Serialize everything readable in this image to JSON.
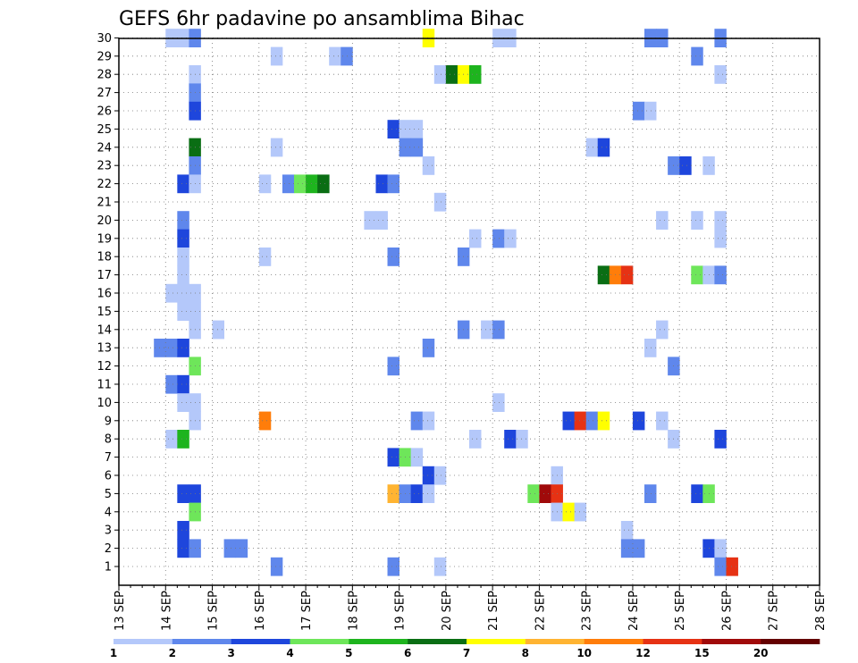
{
  "chart_data": {
    "type": "heatmap",
    "title": "GEFS 6hr padavine po ansamblima Bihac",
    "x_ticks": [
      "13 SEP",
      "14 SEP",
      "15 SEP",
      "16 SEP",
      "17 SEP",
      "18 SEP",
      "19 SEP",
      "20 SEP",
      "21 SEP",
      "22 SEP",
      "23 SEP",
      "24 SEP",
      "25 SEP",
      "26 SEP",
      "27 SEP",
      "28 SEP"
    ],
    "y_members": [
      1,
      2,
      3,
      4,
      5,
      6,
      7,
      8,
      9,
      10,
      11,
      12,
      13,
      14,
      15,
      16,
      17,
      18,
      19,
      20,
      21,
      22,
      23,
      24,
      25,
      26,
      27,
      28,
      29,
      30
    ],
    "grid": true,
    "x_step_hours": 6,
    "colorbar": {
      "labels": [
        "1",
        "2",
        "3",
        "4",
        "5",
        "6",
        "7",
        "8",
        "10",
        "12",
        "15",
        "20"
      ],
      "colors": [
        "#b4c8fa",
        "#5f87ec",
        "#1e46dc",
        "#6ee65a",
        "#1eb41e",
        "#0a6e14",
        "#ffff00",
        "#ffb432",
        "#ff7d0a",
        "#e63214",
        "#a00a0a",
        "#640000"
      ]
    },
    "cells": [
      [
        4,
        30,
        1
      ],
      [
        5,
        30,
        1
      ],
      [
        6,
        30,
        2
      ],
      [
        26,
        30,
        7
      ],
      [
        32,
        30,
        1
      ],
      [
        33,
        30,
        1
      ],
      [
        45,
        30,
        2
      ],
      [
        46,
        30,
        2
      ],
      [
        51,
        30,
        2
      ],
      [
        13,
        29,
        1
      ],
      [
        18,
        29,
        1
      ],
      [
        19,
        29,
        2
      ],
      [
        49,
        29,
        2
      ],
      [
        6,
        28,
        1
      ],
      [
        27,
        28,
        1
      ],
      [
        28,
        28,
        6
      ],
      [
        29,
        28,
        7
      ],
      [
        30,
        28,
        5
      ],
      [
        51,
        28,
        1
      ],
      [
        6,
        27,
        2
      ],
      [
        6,
        26,
        3
      ],
      [
        44,
        26,
        2
      ],
      [
        45,
        26,
        1
      ],
      [
        23,
        25,
        3
      ],
      [
        24,
        25,
        1
      ],
      [
        25,
        25,
        1
      ],
      [
        6,
        24,
        6
      ],
      [
        13,
        24,
        1
      ],
      [
        24,
        24,
        2
      ],
      [
        25,
        24,
        2
      ],
      [
        40,
        24,
        1
      ],
      [
        41,
        24,
        3
      ],
      [
        6,
        23,
        2
      ],
      [
        26,
        23,
        1
      ],
      [
        47,
        23,
        2
      ],
      [
        48,
        23,
        3
      ],
      [
        50,
        23,
        1
      ],
      [
        5,
        22,
        3
      ],
      [
        6,
        22,
        1
      ],
      [
        12,
        22,
        1
      ],
      [
        14,
        22,
        2
      ],
      [
        15,
        22,
        4
      ],
      [
        16,
        22,
        5
      ],
      [
        17,
        22,
        6
      ],
      [
        22,
        22,
        3
      ],
      [
        23,
        22,
        2
      ],
      [
        27,
        21,
        1
      ],
      [
        5,
        20,
        2
      ],
      [
        21,
        20,
        1
      ],
      [
        22,
        20,
        1
      ],
      [
        46,
        20,
        1
      ],
      [
        49,
        20,
        1
      ],
      [
        51,
        20,
        1
      ],
      [
        5,
        19,
        3
      ],
      [
        30,
        19,
        1
      ],
      [
        32,
        19,
        2
      ],
      [
        33,
        19,
        1
      ],
      [
        51,
        19,
        1
      ],
      [
        5,
        18,
        1
      ],
      [
        12,
        18,
        1
      ],
      [
        23,
        18,
        2
      ],
      [
        29,
        18,
        2
      ],
      [
        5,
        17,
        1
      ],
      [
        41,
        17,
        6
      ],
      [
        42,
        17,
        9
      ],
      [
        43,
        17,
        10
      ],
      [
        49,
        17,
        4
      ],
      [
        50,
        17,
        1
      ],
      [
        51,
        17,
        2
      ],
      [
        4,
        16,
        1
      ],
      [
        5,
        16,
        1
      ],
      [
        6,
        16,
        1
      ],
      [
        5,
        15,
        1
      ],
      [
        6,
        15,
        1
      ],
      [
        6,
        14,
        1
      ],
      [
        8,
        14,
        1
      ],
      [
        29,
        14,
        2
      ],
      [
        31,
        14,
        1
      ],
      [
        32,
        14,
        2
      ],
      [
        46,
        14,
        1
      ],
      [
        3,
        13,
        2
      ],
      [
        4,
        13,
        2
      ],
      [
        5,
        13,
        3
      ],
      [
        26,
        13,
        2
      ],
      [
        45,
        13,
        1
      ],
      [
        6,
        12,
        4
      ],
      [
        23,
        12,
        2
      ],
      [
        47,
        12,
        2
      ],
      [
        4,
        11,
        2
      ],
      [
        5,
        11,
        3
      ],
      [
        5,
        10,
        1
      ],
      [
        6,
        10,
        1
      ],
      [
        32,
        10,
        1
      ],
      [
        6,
        9,
        1
      ],
      [
        12,
        9,
        9
      ],
      [
        25,
        9,
        2
      ],
      [
        26,
        9,
        1
      ],
      [
        38,
        9,
        3
      ],
      [
        39,
        9,
        10
      ],
      [
        40,
        9,
        2
      ],
      [
        41,
        9,
        7
      ],
      [
        44,
        9,
        3
      ],
      [
        46,
        9,
        1
      ],
      [
        4,
        8,
        1
      ],
      [
        5,
        8,
        5
      ],
      [
        30,
        8,
        1
      ],
      [
        33,
        8,
        3
      ],
      [
        34,
        8,
        1
      ],
      [
        47,
        8,
        1
      ],
      [
        51,
        8,
        3
      ],
      [
        23,
        7,
        3
      ],
      [
        24,
        7,
        4
      ],
      [
        25,
        7,
        1
      ],
      [
        26,
        6,
        3
      ],
      [
        27,
        6,
        1
      ],
      [
        37,
        6,
        1
      ],
      [
        5,
        5,
        3
      ],
      [
        6,
        5,
        3
      ],
      [
        23,
        5,
        8
      ],
      [
        24,
        5,
        2
      ],
      [
        25,
        5,
        3
      ],
      [
        26,
        5,
        1
      ],
      [
        35,
        5,
        4
      ],
      [
        36,
        5,
        11
      ],
      [
        37,
        5,
        10
      ],
      [
        45,
        5,
        2
      ],
      [
        49,
        5,
        3
      ],
      [
        50,
        5,
        4
      ],
      [
        6,
        4,
        4
      ],
      [
        37,
        4,
        1
      ],
      [
        38,
        4,
        7
      ],
      [
        39,
        4,
        1
      ],
      [
        5,
        3,
        3
      ],
      [
        43,
        3,
        1
      ],
      [
        5,
        2,
        3
      ],
      [
        6,
        2,
        2
      ],
      [
        9,
        2,
        2
      ],
      [
        10,
        2,
        2
      ],
      [
        43,
        2,
        2
      ],
      [
        44,
        2,
        2
      ],
      [
        50,
        2,
        3
      ],
      [
        51,
        2,
        1
      ],
      [
        13,
        1,
        2
      ],
      [
        23,
        1,
        2
      ],
      [
        27,
        1,
        1
      ],
      [
        51,
        1,
        2
      ],
      [
        52,
        1,
        10
      ]
    ]
  }
}
